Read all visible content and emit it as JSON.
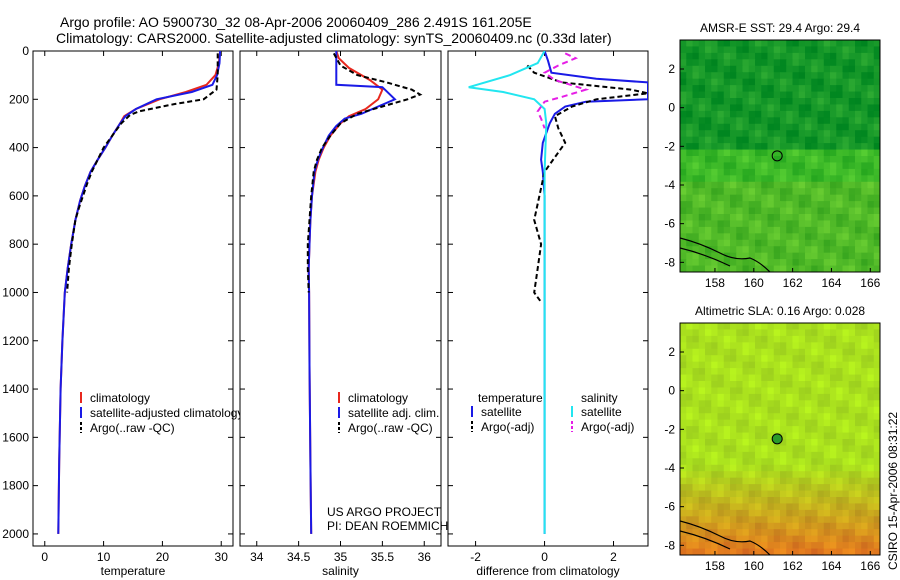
{
  "header": {
    "title_line1": "Argo profile: AO 5900730_32 08-Apr-2006 20060409_286 2.491S 161.205E",
    "title_line2": "Climatology: CARS2000. Satellite-adjusted climatology: synTS_20060409.nc (0.33d later)"
  },
  "annotations": {
    "project": "US ARGO PROJECT",
    "pi": "PI: DEAN ROEMMICH",
    "side_stamp": "CSIRO 15-Apr-2006 08:31:22"
  },
  "colors": {
    "climatology": "#e8281e",
    "satellite": "#1a1ae6",
    "argo": "#000000",
    "satellite_salinity": "#22e6f0",
    "argo_salinity": "#e61ee6"
  },
  "chart_data": [
    {
      "id": "temperature",
      "type": "line",
      "xlabel": "temperature",
      "ylabel": "",
      "xlim": [
        -2,
        32
      ],
      "ylim": [
        2050,
        0
      ],
      "y_reversed": true,
      "xticks": [
        0,
        10,
        20,
        30
      ],
      "yticks": [
        0,
        200,
        400,
        600,
        800,
        1000,
        1200,
        1400,
        1600,
        1800,
        2000
      ],
      "legend": {
        "placement": "lower-right",
        "entries": [
          "climatology",
          "satellite-adjusted climatology",
          "Argo(..raw -QC)"
        ]
      },
      "series": [
        {
          "name": "climatology",
          "color_key": "climatology",
          "dash": "",
          "x": [
            29.8,
            29.6,
            29.0,
            27.5,
            24.0,
            19.5,
            15.5,
            13.5,
            12.8,
            11.5,
            10.3,
            9.0,
            7.8,
            6.8,
            6.0,
            5.2,
            4.5,
            3.9,
            3.4,
            3.0,
            2.7,
            2.45,
            2.3
          ],
          "y": [
            0,
            50,
            100,
            140,
            170,
            200,
            240,
            270,
            300,
            350,
            400,
            450,
            500,
            560,
            620,
            700,
            800,
            900,
            1000,
            1200,
            1400,
            1700,
            2000
          ]
        },
        {
          "name": "satellite-adjusted climatology",
          "color_key": "satellite",
          "dash": "",
          "x": [
            29.8,
            29.7,
            29.3,
            28.5,
            25.0,
            19.0,
            15.5,
            13.7,
            12.8,
            11.5,
            10.3,
            9.0,
            7.8,
            6.8,
            6.0,
            5.2,
            4.5,
            3.9,
            3.4,
            3.0,
            2.7,
            2.45,
            2.3
          ],
          "y": [
            0,
            50,
            100,
            140,
            170,
            200,
            240,
            270,
            300,
            350,
            400,
            450,
            500,
            560,
            620,
            700,
            800,
            900,
            1000,
            1200,
            1400,
            1700,
            2000
          ]
        },
        {
          "name": "Argo(..raw -QC)",
          "color_key": "argo",
          "dash": "5,3",
          "x": [
            29.4,
            29.4,
            29.2,
            27.0,
            22.0,
            16.0,
            14.5,
            13.0,
            11.5,
            10.0,
            9.0,
            8.0,
            7.2,
            6.5,
            5.8,
            5.2,
            4.6,
            4.1,
            3.8
          ],
          "y": [
            10,
            100,
            160,
            200,
            220,
            250,
            265,
            300,
            350,
            400,
            450,
            500,
            550,
            600,
            650,
            700,
            800,
            900,
            1000
          ]
        }
      ]
    },
    {
      "id": "salinity",
      "type": "line",
      "xlabel": "salinity",
      "ylabel": "",
      "xlim": [
        33.8,
        36.2
      ],
      "ylim": [
        2050,
        0
      ],
      "y_reversed": true,
      "xticks": [
        34,
        34.5,
        35,
        35.5,
        36
      ],
      "xtick_labels": [
        "34",
        "34.5",
        "35",
        "35.5",
        "36"
      ],
      "legend": {
        "placement": "lower-right",
        "entries": [
          "climatology",
          "satellite adj. clim.",
          "Argo(..raw -QC)"
        ]
      },
      "series": [
        {
          "name": "climatology",
          "color_key": "climatology",
          "dash": "",
          "x": [
            34.95,
            34.98,
            35.1,
            35.35,
            35.5,
            35.45,
            35.3,
            35.1,
            35.0,
            34.88,
            34.8,
            34.74,
            34.7,
            34.66,
            34.64,
            34.63,
            34.62,
            34.625,
            34.63,
            34.64,
            34.65
          ],
          "y": [
            0,
            30,
            70,
            120,
            160,
            200,
            240,
            270,
            300,
            350,
            400,
            450,
            500,
            600,
            700,
            800,
            900,
            1000,
            1300,
            1700,
            2000
          ]
        },
        {
          "name": "satellite adj. clim.",
          "color_key": "satellite",
          "dash": "",
          "x": [
            34.95,
            34.95,
            34.95,
            35.5,
            35.65,
            35.45,
            35.25,
            35.05,
            34.95,
            34.86,
            34.79,
            34.73,
            34.69,
            34.66,
            34.64,
            34.63,
            34.62,
            34.625,
            34.63,
            34.64,
            34.65
          ],
          "y": [
            0,
            60,
            140,
            150,
            200,
            230,
            260,
            280,
            310,
            350,
            400,
            450,
            500,
            600,
            700,
            800,
            900,
            1000,
            1300,
            1700,
            2000
          ]
        },
        {
          "name": "Argo(..raw -QC)",
          "color_key": "argo",
          "dash": "5,3",
          "x": [
            34.92,
            35.0,
            35.2,
            35.55,
            35.85,
            35.95,
            35.8,
            35.5,
            35.2,
            35.0,
            34.88,
            34.78,
            34.72,
            34.68,
            34.65,
            34.63,
            34.61,
            34.61,
            34.62
          ],
          "y": [
            10,
            60,
            100,
            130,
            160,
            180,
            200,
            230,
            260,
            300,
            350,
            400,
            450,
            500,
            600,
            700,
            800,
            900,
            1000
          ]
        }
      ]
    },
    {
      "id": "difference",
      "type": "line",
      "xlabel": "difference from climatology",
      "ylabel": "",
      "xlim": [
        -2.8,
        3.0
      ],
      "ylim": [
        2050,
        0
      ],
      "y_reversed": true,
      "xticks": [
        -2,
        0,
        2
      ],
      "legend": {
        "placement": "lower-right",
        "headers": [
          "temperature",
          "salinity"
        ],
        "entries": [
          "satellite",
          "Argo(-adj)",
          "satellite",
          "Argo(-adj)"
        ]
      },
      "series": [
        {
          "name": "satellite",
          "group": "temperature",
          "color_key": "satellite",
          "dash": "",
          "x": [
            0.0,
            0.1,
            0.2,
            1.5,
            3.0,
            3.0,
            1.2,
            0.6,
            0.3,
            0.15,
            -0.05,
            -0.1,
            -0.05,
            0.0,
            0.0,
            0.0
          ],
          "y": [
            0,
            40,
            90,
            115,
            130,
            200,
            210,
            230,
            260,
            300,
            380,
            450,
            500,
            600,
            800,
            2000
          ]
        },
        {
          "name": "Argo(-adj)",
          "group": "temperature",
          "color_key": "argo",
          "dash": "5,3",
          "x": [
            -0.5,
            -0.3,
            0.5,
            2.5,
            3.0,
            1.5,
            0.8,
            0.3,
            0.4,
            0.6,
            0.3,
            0.0,
            -0.3,
            -0.1,
            -0.2,
            -0.3,
            -0.1
          ],
          "y": [
            60,
            90,
            130,
            160,
            175,
            200,
            230,
            270,
            320,
            380,
            440,
            500,
            700,
            800,
            900,
            1000,
            1040
          ]
        },
        {
          "name": "satellite",
          "group": "salinity",
          "color_key": "satellite_salinity",
          "dash": "",
          "x": [
            0.0,
            -0.2,
            -1.0,
            -2.2,
            -1.2,
            -0.3,
            0.0,
            0.05,
            0.0,
            0.0
          ],
          "y": [
            0,
            50,
            100,
            150,
            170,
            200,
            240,
            300,
            500,
            2000
          ]
        },
        {
          "name": "Argo(-adj)",
          "group": "salinity",
          "color_key": "argo_salinity",
          "dash": "6,4",
          "x": [
            0.6,
            0.9,
            0.4,
            0.0,
            0.3,
            1.2,
            0.5,
            0.0,
            -0.2,
            -0.1,
            0.0
          ],
          "y": [
            10,
            30,
            60,
            90,
            120,
            160,
            190,
            210,
            250,
            280,
            320
          ]
        }
      ]
    },
    {
      "id": "sst-map",
      "type": "heatmap",
      "title": "AMSR-E SST: 29.4 Argo: 29.4",
      "xlim": [
        156.2,
        166.5
      ],
      "ylim": [
        -8.5,
        3.5
      ],
      "xticks": [
        158,
        160,
        162,
        164,
        166
      ],
      "yticks": [
        -8,
        -6,
        -4,
        -2,
        0,
        2
      ],
      "palette": "green",
      "argo_marker": {
        "lon": 161.205,
        "lat": -2.491
      }
    },
    {
      "id": "sla-map",
      "type": "heatmap",
      "title": "Altimetric SLA: 0.16 Argo: 0.028",
      "xlim": [
        156.2,
        166.5
      ],
      "ylim": [
        -8.5,
        3.5
      ],
      "xticks": [
        158,
        160,
        162,
        164,
        166
      ],
      "yticks": [
        -8,
        -6,
        -4,
        -2,
        0,
        2
      ],
      "palette": "yellow",
      "argo_marker": {
        "lon": 161.205,
        "lat": -2.491
      }
    }
  ]
}
